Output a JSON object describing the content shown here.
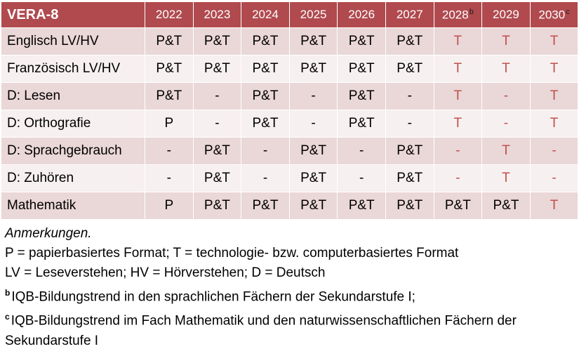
{
  "colors": {
    "header_bg": "#b04a4f",
    "band_pink": "#ead7d7",
    "band_light": "#f7f0f0",
    "accent_red_text": "#c0504d",
    "header_text": "#ffffff",
    "body_text": "#000000"
  },
  "table": {
    "title": "VERA-8",
    "years": [
      {
        "label": "2022",
        "sup": ""
      },
      {
        "label": "2023",
        "sup": ""
      },
      {
        "label": "2024",
        "sup": ""
      },
      {
        "label": "2025",
        "sup": ""
      },
      {
        "label": "2026",
        "sup": ""
      },
      {
        "label": "2027",
        "sup": ""
      },
      {
        "label": "2028",
        "sup": "b"
      },
      {
        "label": "2029",
        "sup": ""
      },
      {
        "label": "2030",
        "sup": "c"
      }
    ],
    "rows": [
      {
        "label": "Englisch LV/HV",
        "cells": [
          {
            "v": "P&T",
            "red": false
          },
          {
            "v": "P&T",
            "red": false
          },
          {
            "v": "P&T",
            "red": false
          },
          {
            "v": "P&T",
            "red": false
          },
          {
            "v": "P&T",
            "red": false
          },
          {
            "v": "P&T",
            "red": false
          },
          {
            "v": "T",
            "red": true
          },
          {
            "v": "T",
            "red": true
          },
          {
            "v": "T",
            "red": true
          }
        ]
      },
      {
        "label": "Französisch LV/HV",
        "cells": [
          {
            "v": "P&T",
            "red": false
          },
          {
            "v": "P&T",
            "red": false
          },
          {
            "v": "P&T",
            "red": false
          },
          {
            "v": "P&T",
            "red": false
          },
          {
            "v": "P&T",
            "red": false
          },
          {
            "v": "P&T",
            "red": false
          },
          {
            "v": "T",
            "red": true
          },
          {
            "v": "T",
            "red": true
          },
          {
            "v": "T",
            "red": true
          }
        ]
      },
      {
        "label": "D: Lesen",
        "cells": [
          {
            "v": "P&T",
            "red": false
          },
          {
            "v": "-",
            "red": false
          },
          {
            "v": "P&T",
            "red": false
          },
          {
            "v": "-",
            "red": false
          },
          {
            "v": "P&T",
            "red": false
          },
          {
            "v": "-",
            "red": false
          },
          {
            "v": "T",
            "red": true
          },
          {
            "v": "-",
            "red": true
          },
          {
            "v": "T",
            "red": true
          }
        ]
      },
      {
        "label": "D: Orthografie",
        "cells": [
          {
            "v": "P",
            "red": false
          },
          {
            "v": "-",
            "red": false
          },
          {
            "v": "P&T",
            "red": false
          },
          {
            "v": "-",
            "red": false
          },
          {
            "v": "P&T",
            "red": false
          },
          {
            "v": "-",
            "red": false
          },
          {
            "v": "T",
            "red": true
          },
          {
            "v": "-",
            "red": true
          },
          {
            "v": "T",
            "red": true
          }
        ]
      },
      {
        "label": "D: Sprachgebrauch",
        "cells": [
          {
            "v": "-",
            "red": false
          },
          {
            "v": "P&T",
            "red": false
          },
          {
            "v": "-",
            "red": false
          },
          {
            "v": "P&T",
            "red": false
          },
          {
            "v": "-",
            "red": false
          },
          {
            "v": "P&T",
            "red": false
          },
          {
            "v": "-",
            "red": true
          },
          {
            "v": "T",
            "red": true
          },
          {
            "v": "-",
            "red": true
          }
        ]
      },
      {
        "label": "D: Zuhören",
        "cells": [
          {
            "v": "-",
            "red": false
          },
          {
            "v": "P&T",
            "red": false
          },
          {
            "v": "-",
            "red": false
          },
          {
            "v": "P&T",
            "red": false
          },
          {
            "v": "-",
            "red": false
          },
          {
            "v": "P&T",
            "red": false
          },
          {
            "v": "-",
            "red": true
          },
          {
            "v": "T",
            "red": true
          },
          {
            "v": "-",
            "red": true
          }
        ]
      },
      {
        "label": "Mathematik",
        "cells": [
          {
            "v": "P",
            "red": false
          },
          {
            "v": "P&T",
            "red": false
          },
          {
            "v": "P&T",
            "red": false
          },
          {
            "v": "P&T",
            "red": false
          },
          {
            "v": "P&T",
            "red": false
          },
          {
            "v": "P&T",
            "red": false
          },
          {
            "v": "P&T",
            "red": false
          },
          {
            "v": "P&T",
            "red": false
          },
          {
            "v": "T",
            "red": true
          }
        ]
      }
    ]
  },
  "notes": {
    "title": "Anmerkungen.",
    "lines": [
      {
        "sup": "",
        "text": "P = papierbasiertes Format; T = technologie- bzw. computerbasiertes Format"
      },
      {
        "sup": "",
        "text": "LV = Leseverstehen; HV = Hörverstehen; D = Deutsch"
      },
      {
        "sup": "b",
        "text": "IQB-Bildungstrend in den sprachlichen Fächern der Sekundarstufe I;"
      },
      {
        "sup": "c",
        "text": "IQB-Bildungstrend im Fach Mathematik und den naturwissenschaftlichen Fächern der Sekundarstufe I"
      }
    ]
  }
}
